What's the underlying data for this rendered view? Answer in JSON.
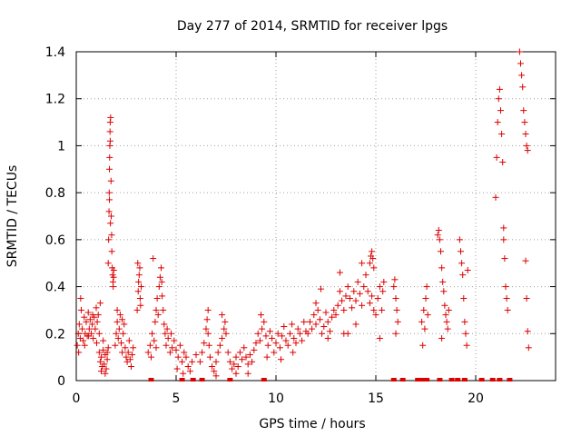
{
  "chart_data": {
    "type": "scatter",
    "title": "Day 277 of 2014, SRMTID for receiver lpgs",
    "xlabel": "GPS time / hours",
    "ylabel": "SRMTID / TECUs",
    "xlim": [
      0,
      24
    ],
    "ylim": [
      0,
      1.4
    ],
    "x_ticks": [
      0,
      5,
      10,
      15,
      20
    ],
    "y_ticks": [
      0,
      0.2,
      0.4,
      0.6,
      0.8,
      1,
      1.2,
      1.4
    ],
    "x_tick_labels": [
      "0",
      "5",
      "10",
      "15",
      "20"
    ],
    "y_tick_labels": [
      "0",
      "0.2",
      "0.4",
      "0.6",
      "0.8",
      "1",
      "1.2",
      "1.4"
    ],
    "grid": true,
    "marker": "plus",
    "color": "#dd0000",
    "series": [
      {
        "name": "SRMTID",
        "points": [
          [
            0.05,
            0.15
          ],
          [
            0.1,
            0.2
          ],
          [
            0.15,
            0.24
          ],
          [
            0.2,
            0.18
          ],
          [
            0.25,
            0.3
          ],
          [
            0.3,
            0.22
          ],
          [
            0.35,
            0.17
          ],
          [
            0.4,
            0.27
          ],
          [
            0.45,
            0.2
          ],
          [
            0.5,
            0.25
          ],
          [
            0.55,
            0.19
          ],
          [
            0.6,
            0.29
          ],
          [
            0.65,
            0.22
          ],
          [
            0.7,
            0.26
          ],
          [
            0.75,
            0.2
          ],
          [
            0.8,
            0.24
          ],
          [
            0.85,
            0.18
          ],
          [
            0.9,
            0.27
          ],
          [
            0.95,
            0.22
          ],
          [
            1.0,
            0.31
          ],
          [
            1.05,
            0.25
          ],
          [
            1.1,
            0.28
          ],
          [
            1.15,
            0.2
          ],
          [
            1.2,
            0.33
          ],
          [
            0.12,
            0.12
          ],
          [
            0.22,
            0.35
          ],
          [
            0.42,
            0.15
          ],
          [
            0.62,
            0.19
          ],
          [
            0.82,
            0.28
          ],
          [
            1.02,
            0.16
          ],
          [
            1.15,
            0.12
          ],
          [
            1.2,
            0.08
          ],
          [
            1.25,
            0.1
          ],
          [
            1.3,
            0.06
          ],
          [
            1.35,
            0.13
          ],
          [
            1.4,
            0.07
          ],
          [
            1.45,
            0.11
          ],
          [
            1.5,
            0.05
          ],
          [
            1.55,
            0.09
          ],
          [
            1.6,
            0.14
          ],
          [
            1.25,
            0.04
          ],
          [
            1.35,
            0.17
          ],
          [
            1.45,
            0.03
          ],
          [
            1.55,
            0.12
          ],
          [
            1.6,
            0.5
          ],
          [
            1.62,
            0.6
          ],
          [
            1.64,
            0.72
          ],
          [
            1.65,
            0.8
          ],
          [
            1.66,
            0.9
          ],
          [
            1.67,
            0.95
          ],
          [
            1.68,
            1.0
          ],
          [
            1.69,
            1.06
          ],
          [
            1.7,
            1.1
          ],
          [
            1.72,
            1.12
          ],
          [
            1.7,
            1.02
          ],
          [
            1.74,
            0.85
          ],
          [
            1.75,
            0.7
          ],
          [
            1.77,
            0.62
          ],
          [
            1.78,
            0.55
          ],
          [
            1.8,
            0.48
          ],
          [
            1.82,
            0.45
          ],
          [
            1.84,
            0.42
          ],
          [
            1.85,
            0.4
          ],
          [
            1.87,
            0.44
          ],
          [
            1.88,
            0.47
          ],
          [
            1.66,
            0.77
          ],
          [
            1.71,
            0.67
          ],
          [
            1.95,
            0.15
          ],
          [
            2.0,
            0.2
          ],
          [
            2.05,
            0.25
          ],
          [
            2.1,
            0.18
          ],
          [
            2.15,
            0.22
          ],
          [
            2.2,
            0.28
          ],
          [
            2.25,
            0.16
          ],
          [
            2.3,
            0.12
          ],
          [
            2.35,
            0.2
          ],
          [
            2.4,
            0.24
          ],
          [
            2.45,
            0.14
          ],
          [
            2.5,
            0.1
          ],
          [
            2.55,
            0.08
          ],
          [
            2.6,
            0.12
          ],
          [
            2.65,
            0.17
          ],
          [
            2.7,
            0.09
          ],
          [
            2.75,
            0.06
          ],
          [
            2.8,
            0.11
          ],
          [
            2.85,
            0.14
          ],
          [
            2.05,
            0.3
          ],
          [
            2.3,
            0.26
          ],
          [
            3.05,
            0.3
          ],
          [
            3.1,
            0.38
          ],
          [
            3.12,
            0.42
          ],
          [
            3.15,
            0.45
          ],
          [
            3.18,
            0.48
          ],
          [
            3.2,
            0.35
          ],
          [
            3.22,
            0.32
          ],
          [
            3.25,
            0.4
          ],
          [
            3.08,
            0.5
          ],
          [
            3.6,
            0.12
          ],
          [
            3.7,
            0.15
          ],
          [
            3.8,
            0.2
          ],
          [
            3.9,
            0.17
          ],
          [
            3.95,
            0.25
          ],
          [
            4.0,
            0.3
          ],
          [
            4.05,
            0.35
          ],
          [
            4.1,
            0.28
          ],
          [
            4.15,
            0.4
          ],
          [
            4.2,
            0.44
          ],
          [
            4.25,
            0.48
          ],
          [
            4.28,
            0.42
          ],
          [
            4.3,
            0.36
          ],
          [
            4.35,
            0.3
          ],
          [
            4.4,
            0.24
          ],
          [
            4.45,
            0.2
          ],
          [
            3.85,
            0.52
          ],
          [
            3.75,
            0.1
          ],
          [
            4.0,
            0.14
          ],
          [
            4.5,
            0.15
          ],
          [
            4.6,
            0.18
          ],
          [
            4.7,
            0.12
          ],
          [
            4.8,
            0.14
          ],
          [
            4.9,
            0.17
          ],
          [
            5.0,
            0.13
          ],
          [
            5.1,
            0.1
          ],
          [
            5.2,
            0.15
          ],
          [
            5.3,
            0.08
          ],
          [
            5.4,
            0.12
          ],
          [
            5.5,
            0.1
          ],
          [
            5.6,
            0.06
          ],
          [
            5.7,
            0.04
          ],
          [
            5.8,
            0.08
          ],
          [
            6.0,
            0.11
          ],
          [
            4.55,
            0.22
          ],
          [
            4.75,
            0.2
          ],
          [
            5.05,
            0.05
          ],
          [
            5.35,
            0.03
          ],
          [
            6.2,
            0.08
          ],
          [
            6.3,
            0.12
          ],
          [
            6.4,
            0.16
          ],
          [
            6.5,
            0.22
          ],
          [
            6.55,
            0.26
          ],
          [
            6.6,
            0.2
          ],
          [
            6.65,
            0.15
          ],
          [
            6.7,
            0.1
          ],
          [
            6.8,
            0.06
          ],
          [
            6.9,
            0.04
          ],
          [
            7.0,
            0.08
          ],
          [
            7.1,
            0.12
          ],
          [
            7.2,
            0.15
          ],
          [
            7.3,
            0.18
          ],
          [
            7.4,
            0.22
          ],
          [
            7.45,
            0.25
          ],
          [
            7.5,
            0.2
          ],
          [
            7.6,
            0.12
          ],
          [
            7.7,
            0.08
          ],
          [
            7.8,
            0.05
          ],
          [
            7.9,
            0.07
          ],
          [
            8.0,
            0.1
          ],
          [
            8.1,
            0.06
          ],
          [
            8.2,
            0.12
          ],
          [
            8.3,
            0.09
          ],
          [
            8.4,
            0.14
          ],
          [
            8.5,
            0.1
          ],
          [
            8.6,
            0.07
          ],
          [
            8.7,
            0.11
          ],
          [
            8.8,
            0.08
          ],
          [
            8.9,
            0.13
          ],
          [
            6.6,
            0.3
          ],
          [
            7.3,
            0.28
          ],
          [
            7.0,
            0.02
          ],
          [
            8.0,
            0.03
          ],
          [
            8.6,
            0.03
          ],
          [
            9.0,
            0.16
          ],
          [
            9.1,
            0.2
          ],
          [
            9.2,
            0.17
          ],
          [
            9.3,
            0.22
          ],
          [
            9.4,
            0.25
          ],
          [
            9.5,
            0.19
          ],
          [
            9.6,
            0.15
          ],
          [
            9.7,
            0.21
          ],
          [
            9.8,
            0.18
          ],
          [
            9.9,
            0.12
          ],
          [
            10.0,
            0.16
          ],
          [
            10.1,
            0.2
          ],
          [
            10.2,
            0.14
          ],
          [
            10.3,
            0.19
          ],
          [
            10.4,
            0.23
          ],
          [
            10.5,
            0.17
          ],
          [
            10.6,
            0.15
          ],
          [
            10.7,
            0.2
          ],
          [
            10.8,
            0.24
          ],
          [
            10.9,
            0.18
          ],
          [
            11.0,
            0.16
          ],
          [
            11.1,
            0.22
          ],
          [
            11.2,
            0.2
          ],
          [
            11.3,
            0.17
          ],
          [
            11.4,
            0.25
          ],
          [
            11.5,
            0.21
          ],
          [
            9.25,
            0.28
          ],
          [
            9.55,
            0.1
          ],
          [
            10.25,
            0.09
          ],
          [
            10.85,
            0.12
          ],
          [
            11.6,
            0.2
          ],
          [
            11.7,
            0.25
          ],
          [
            11.8,
            0.22
          ],
          [
            11.9,
            0.28
          ],
          [
            12.0,
            0.24
          ],
          [
            12.1,
            0.3
          ],
          [
            12.2,
            0.26
          ],
          [
            12.3,
            0.2
          ],
          [
            12.4,
            0.23
          ],
          [
            12.5,
            0.29
          ],
          [
            12.6,
            0.25
          ],
          [
            12.7,
            0.21
          ],
          [
            12.8,
            0.27
          ],
          [
            12.9,
            0.3
          ],
          [
            12.0,
            0.33
          ],
          [
            12.25,
            0.39
          ],
          [
            12.6,
            0.18
          ],
          [
            13.0,
            0.28
          ],
          [
            13.1,
            0.32
          ],
          [
            13.2,
            0.38
          ],
          [
            13.3,
            0.34
          ],
          [
            13.4,
            0.3
          ],
          [
            13.5,
            0.36
          ],
          [
            13.6,
            0.4
          ],
          [
            13.7,
            0.35
          ],
          [
            13.8,
            0.31
          ],
          [
            13.9,
            0.38
          ],
          [
            14.0,
            0.34
          ],
          [
            14.1,
            0.42
          ],
          [
            14.2,
            0.37
          ],
          [
            14.3,
            0.32
          ],
          [
            14.4,
            0.4
          ],
          [
            14.5,
            0.45
          ],
          [
            14.6,
            0.38
          ],
          [
            14.7,
            0.33
          ],
          [
            14.8,
            0.36
          ],
          [
            14.9,
            0.3
          ],
          [
            15.0,
            0.28
          ],
          [
            15.1,
            0.35
          ],
          [
            15.2,
            0.4
          ],
          [
            13.2,
            0.46
          ],
          [
            13.6,
            0.2
          ],
          [
            14.0,
            0.24
          ],
          [
            14.3,
            0.5
          ],
          [
            13.4,
            0.2
          ],
          [
            15.2,
            0.18
          ],
          [
            14.7,
            0.5
          ],
          [
            14.75,
            0.53
          ],
          [
            14.8,
            0.55
          ],
          [
            14.85,
            0.52
          ],
          [
            14.9,
            0.48
          ],
          [
            15.3,
            0.3
          ],
          [
            15.35,
            0.38
          ],
          [
            15.4,
            0.42
          ],
          [
            15.9,
            0.4
          ],
          [
            15.95,
            0.43
          ],
          [
            16.0,
            0.35
          ],
          [
            16.05,
            0.3
          ],
          [
            16.1,
            0.25
          ],
          [
            16.0,
            0.2
          ],
          [
            17.3,
            0.25
          ],
          [
            17.4,
            0.3
          ],
          [
            17.5,
            0.35
          ],
          [
            17.55,
            0.4
          ],
          [
            17.6,
            0.28
          ],
          [
            17.45,
            0.22
          ],
          [
            17.35,
            0.15
          ],
          [
            18.1,
            0.62
          ],
          [
            18.15,
            0.64
          ],
          [
            18.2,
            0.6
          ],
          [
            18.25,
            0.55
          ],
          [
            18.3,
            0.48
          ],
          [
            18.35,
            0.42
          ],
          [
            18.4,
            0.38
          ],
          [
            18.45,
            0.32
          ],
          [
            18.5,
            0.28
          ],
          [
            18.55,
            0.25
          ],
          [
            18.6,
            0.22
          ],
          [
            18.65,
            0.3
          ],
          [
            18.3,
            0.18
          ],
          [
            19.2,
            0.6
          ],
          [
            19.25,
            0.55
          ],
          [
            19.3,
            0.5
          ],
          [
            19.35,
            0.45
          ],
          [
            19.4,
            0.35
          ],
          [
            19.45,
            0.25
          ],
          [
            19.5,
            0.2
          ],
          [
            19.55,
            0.15
          ],
          [
            19.6,
            0.47
          ],
          [
            21.0,
            0.78
          ],
          [
            21.05,
            0.95
          ],
          [
            21.1,
            1.1
          ],
          [
            21.15,
            1.2
          ],
          [
            21.2,
            1.24
          ],
          [
            21.25,
            1.15
          ],
          [
            21.3,
            1.05
          ],
          [
            21.35,
            0.93
          ],
          [
            21.4,
            0.65
          ],
          [
            21.45,
            0.52
          ],
          [
            21.5,
            0.4
          ],
          [
            21.55,
            0.35
          ],
          [
            21.6,
            0.3
          ],
          [
            21.4,
            0.6
          ],
          [
            22.2,
            1.4
          ],
          [
            22.25,
            1.35
          ],
          [
            22.3,
            1.3
          ],
          [
            22.35,
            1.25
          ],
          [
            22.4,
            1.15
          ],
          [
            22.45,
            1.1
          ],
          [
            22.5,
            1.05
          ],
          [
            22.55,
            1.0
          ],
          [
            22.6,
            0.98
          ],
          [
            22.5,
            0.51
          ],
          [
            22.55,
            0.35
          ],
          [
            22.6,
            0.21
          ],
          [
            22.65,
            0.14
          ]
        ]
      }
    ],
    "zero_points_x": [
      3.75,
      5.3,
      5.85,
      6.3,
      7.7,
      9.4,
      15.9,
      16.35,
      17.1,
      17.3,
      17.55,
      18.2,
      18.8,
      19.1,
      19.45,
      20.3,
      20.85,
      21.2,
      21.7
    ]
  }
}
